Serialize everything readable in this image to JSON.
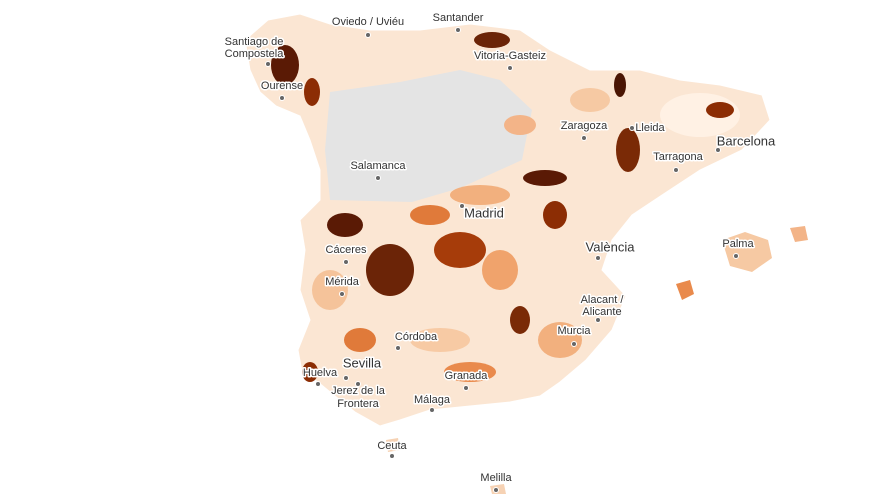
{
  "map": {
    "cities": [
      {
        "name": "Oviedo / Uviéu"
      },
      {
        "name": "Santander"
      },
      {
        "lines": [
          "Santiago de",
          "Compostela"
        ]
      },
      {
        "name": "Vitoria-Gasteiz"
      },
      {
        "name": "Ourense"
      },
      {
        "name": "Zaragoza"
      },
      {
        "name": "Lleida"
      },
      {
        "name": "Tarragona"
      },
      {
        "name": "Barcelona"
      },
      {
        "name": "Salamanca"
      },
      {
        "name": "Madrid"
      },
      {
        "name": "València"
      },
      {
        "name": "Palma"
      },
      {
        "name": "Cáceres"
      },
      {
        "name": "Mérida"
      },
      {
        "lines": [
          "Alacant /",
          "Alicante"
        ]
      },
      {
        "name": "Murcia"
      },
      {
        "name": "Córdoba"
      },
      {
        "name": "Sevilla"
      },
      {
        "name": "Huelva"
      },
      {
        "lines": [
          "Jerez de la",
          "Frontera"
        ]
      },
      {
        "name": "Granada"
      },
      {
        "name": "Málaga"
      },
      {
        "name": "Ceuta"
      },
      {
        "name": "Melilla"
      }
    ]
  }
}
